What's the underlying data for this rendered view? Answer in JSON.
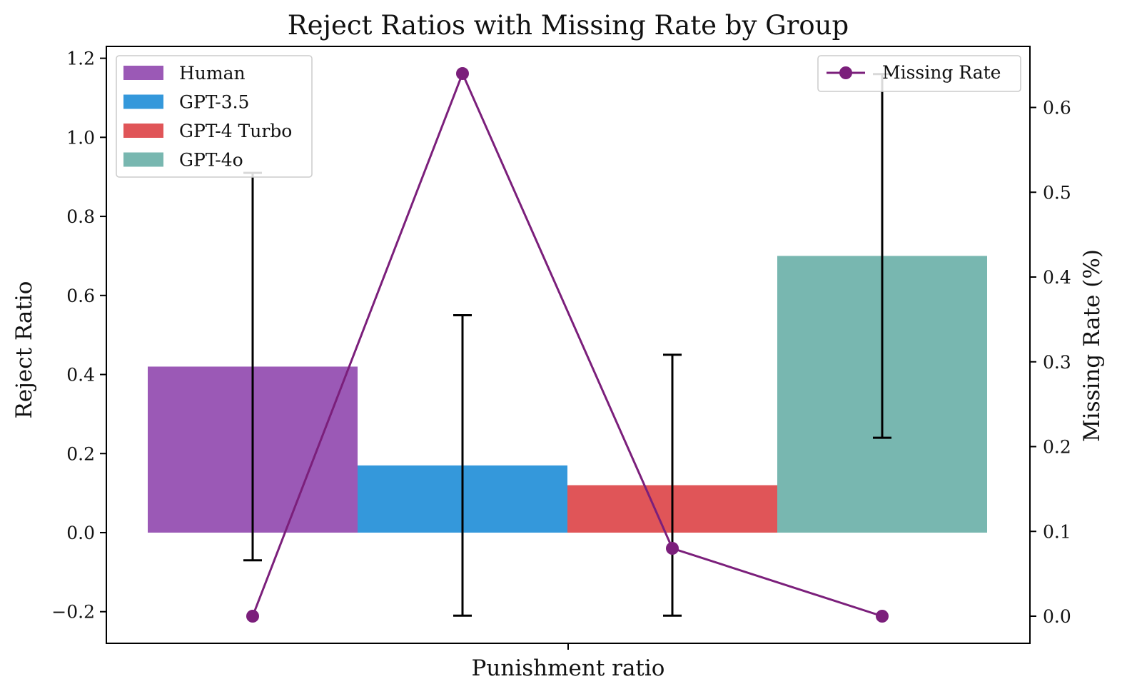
{
  "chart_data": {
    "type": "bar",
    "title": "Reject Ratios with Missing Rate by Group",
    "xlabel": "Punishment ratio",
    "ylabel": "Reject Ratio",
    "y2label": "Missing Rate (%)",
    "ylim": [
      -0.28,
      1.23
    ],
    "y2lim": [
      -0.032,
      0.672
    ],
    "yticks": [
      -0.2,
      0.0,
      0.2,
      0.4,
      0.6,
      0.8,
      1.0,
      1.2
    ],
    "ytick_labels": [
      "−0.2",
      "0.0",
      "0.2",
      "0.4",
      "0.6",
      "0.8",
      "1.0",
      "1.2"
    ],
    "y2ticks": [
      0.0,
      0.1,
      0.2,
      0.3,
      0.4,
      0.5,
      0.6
    ],
    "y2tick_labels": [
      "0.0",
      "0.1",
      "0.2",
      "0.3",
      "0.4",
      "0.5",
      "0.6"
    ],
    "grid": false,
    "series": [
      {
        "name": "Human",
        "value": 0.42,
        "err_low": -0.07,
        "err_high": 0.91,
        "missing_rate": 0.0,
        "color": "#9b59b6"
      },
      {
        "name": "GPT-3.5",
        "value": 0.17,
        "err_low": -0.21,
        "err_high": 0.55,
        "missing_rate": 0.64,
        "color": "#3498db"
      },
      {
        "name": "GPT-4 Turbo",
        "value": 0.12,
        "err_low": -0.21,
        "err_high": 0.45,
        "missing_rate": 0.08,
        "color": "#e05558"
      },
      {
        "name": "GPT-4o",
        "value": 0.7,
        "err_low": 0.24,
        "err_high": 1.16,
        "missing_rate": 0.0,
        "color": "#78b7b0"
      }
    ],
    "line_series": {
      "name": "Missing Rate",
      "color": "#7b1f7b"
    },
    "legend_bars_position": "upper-left",
    "legend_line_position": "upper-right"
  }
}
